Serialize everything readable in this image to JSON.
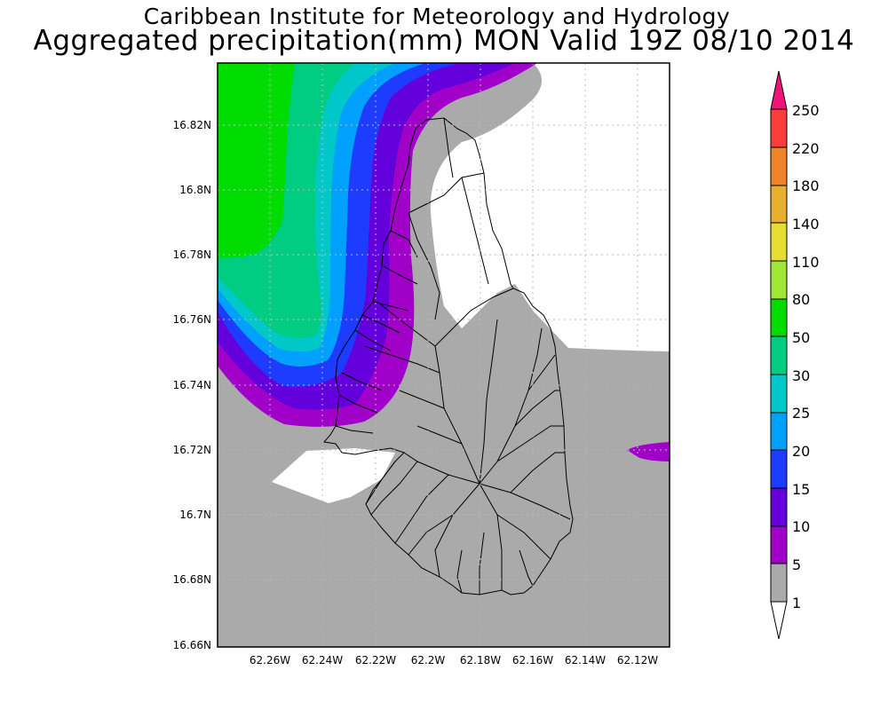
{
  "titles": {
    "line1": "Caribbean Institute for Meteorology and Hydrology",
    "line2": "Aggregated precipitation(mm) MON Valid 19Z 08/10 2014"
  },
  "map": {
    "lat_labels": [
      "16.82N",
      "16.8N",
      "16.78N",
      "16.76N",
      "16.74N",
      "16.72N",
      "16.7N",
      "16.68N",
      "16.66N"
    ],
    "lon_labels": [
      "62.26W",
      "62.24W",
      "62.22W",
      "62.2W",
      "62.18W",
      "62.16W",
      "62.14W",
      "62.12W"
    ],
    "lat_range": [
      16.66,
      16.841
    ],
    "lon_range": [
      -62.277,
      -62.104
    ]
  },
  "legend": {
    "levels": [
      "250",
      "220",
      "180",
      "140",
      "110",
      "80",
      "50",
      "30",
      "25",
      "20",
      "15",
      "10",
      "5",
      "1"
    ],
    "colors": {
      "above_250": "#f0147a",
      "220_250": "#fa3c3c",
      "180_220": "#f08228",
      "140_180": "#e6af2d",
      "110_140": "#e6dc32",
      "80_110": "#a0e632",
      "50_80": "#00dc00",
      "30_50": "#00cc82",
      "25_30": "#00c8c8",
      "20_25": "#00a0ff",
      "15_20": "#1e3cff",
      "10_15": "#6400dc",
      "5_10": "#a000c8",
      "1_5": "#aaaaaa",
      "below_1": "#ffffff"
    }
  }
}
